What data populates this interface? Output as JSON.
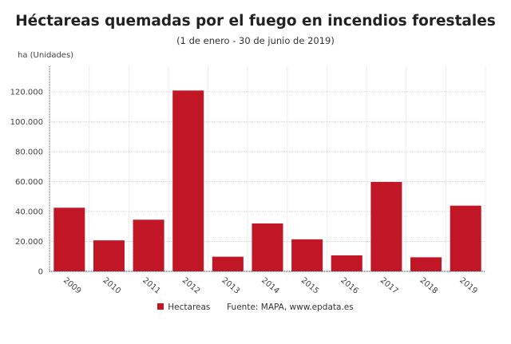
{
  "chart_data": {
    "type": "bar",
    "title": "Héctareas quemadas por el fuego en incendios forestales",
    "subtitle": "(1 de enero - 30 de junio de 2019)",
    "ylabel": "ha (Unidades)",
    "xlabel": "",
    "categories": [
      "2009",
      "2010",
      "2011",
      "2012",
      "2013",
      "2014",
      "2015",
      "2016",
      "2017",
      "2018",
      "2019"
    ],
    "series": [
      {
        "name": "Hectareas",
        "values": [
          42500,
          20700,
          34500,
          120800,
          9800,
          32000,
          21400,
          10700,
          59700,
          9400,
          43900
        ]
      }
    ],
    "ylim": [
      0,
      137000
    ],
    "yticks": [
      0,
      20000,
      40000,
      60000,
      80000,
      100000,
      120000
    ],
    "ytick_labels": [
      "0",
      "20.000",
      "40.000",
      "60.000",
      "80.000",
      "100.000",
      "120.000"
    ],
    "grid": true,
    "legend_position": "bottom",
    "bar_color": "#c01626",
    "source": "Fuente: MAPA, www.epdata.es"
  }
}
